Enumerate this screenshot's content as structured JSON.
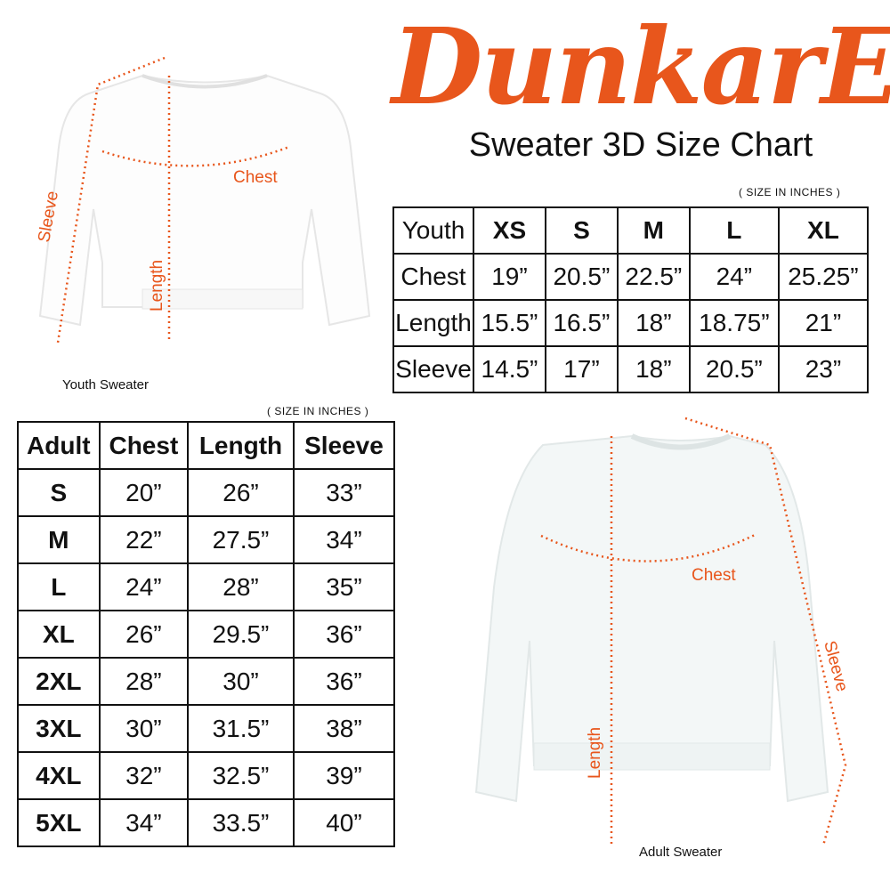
{
  "brand": "DunkarE",
  "title": "Sweater 3D Size Chart",
  "colors": {
    "accent": "#e8561c",
    "watermark": "#f4b999"
  },
  "youth": {
    "note": "( SIZE IN INCHES )",
    "caption": "Youth Sweater",
    "labels": {
      "chest": "Chest",
      "length": "Length",
      "sleeve": "Sleeve"
    },
    "header": [
      "Youth",
      "XS",
      "S",
      "M",
      "L",
      "XL"
    ],
    "rows": [
      [
        "Chest",
        "19”",
        "20.5”",
        "22.5”",
        "24”",
        "25.25”"
      ],
      [
        "Length",
        "15.5”",
        "16.5”",
        "18”",
        "18.75”",
        "21”"
      ],
      [
        "Sleeve",
        "14.5”",
        "17”",
        "18”",
        "20.5”",
        "23”"
      ]
    ]
  },
  "adult": {
    "note": "( SIZE IN INCHES )",
    "caption": "Adult Sweater",
    "labels": {
      "chest": "Chest",
      "length": "Length",
      "sleeve": "Sleeve"
    },
    "header": [
      "Adult",
      "Chest",
      "Length",
      "Sleeve"
    ],
    "rows": [
      [
        "S",
        "20”",
        "26”",
        "33”"
      ],
      [
        "M",
        "22”",
        "27.5”",
        "34”"
      ],
      [
        "L",
        "24”",
        "28”",
        "35”"
      ],
      [
        "XL",
        "26”",
        "29.5”",
        "36”"
      ],
      [
        "2XL",
        "28”",
        "30”",
        "36”"
      ],
      [
        "3XL",
        "30”",
        "31.5”",
        "38”"
      ],
      [
        "4XL",
        "32”",
        "32.5”",
        "39”"
      ],
      [
        "5XL",
        "34”",
        "33.5”",
        "40”"
      ]
    ]
  }
}
